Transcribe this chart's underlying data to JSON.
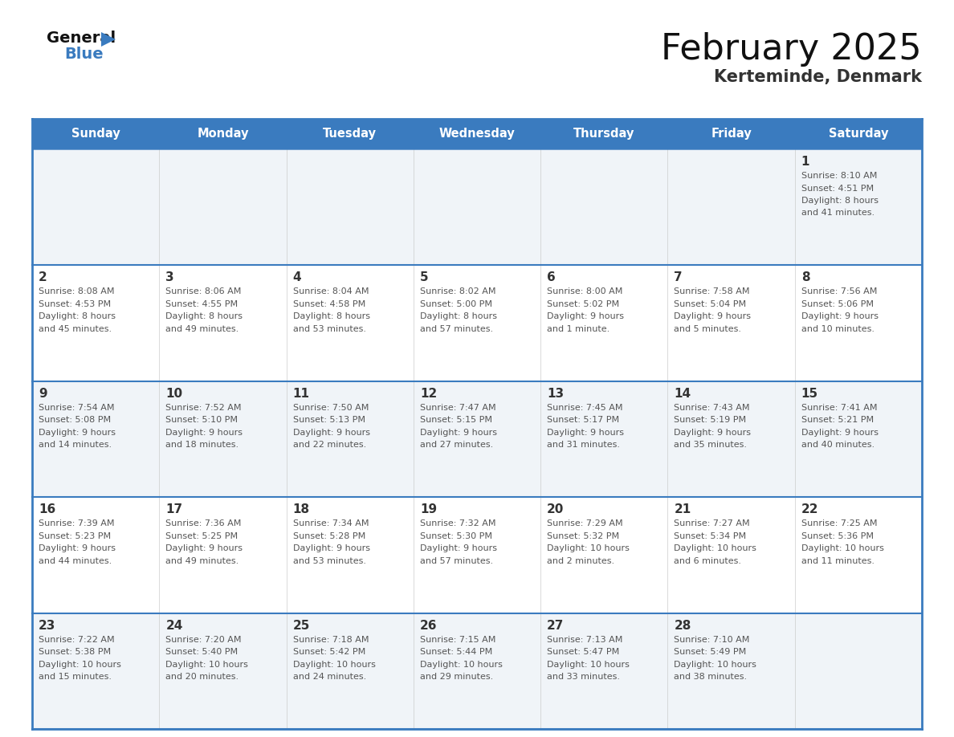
{
  "title": "February 2025",
  "subtitle": "Kerteminde, Denmark",
  "header_bg": "#3a7bbf",
  "header_text": "#ffffff",
  "day_names": [
    "Sunday",
    "Monday",
    "Tuesday",
    "Wednesday",
    "Thursday",
    "Friday",
    "Saturday"
  ],
  "border_color": "#3a7bbf",
  "row_divider_color": "#3a7bbf",
  "cell_bg_light": "#f0f4f8",
  "cell_bg_white": "#ffffff",
  "number_color": "#333333",
  "text_color": "#555555",
  "days": [
    {
      "day": 1,
      "col": 6,
      "row": 0,
      "sunrise": "8:10 AM",
      "sunset": "4:51 PM",
      "daylight": "8 hours\nand 41 minutes."
    },
    {
      "day": 2,
      "col": 0,
      "row": 1,
      "sunrise": "8:08 AM",
      "sunset": "4:53 PM",
      "daylight": "8 hours\nand 45 minutes."
    },
    {
      "day": 3,
      "col": 1,
      "row": 1,
      "sunrise": "8:06 AM",
      "sunset": "4:55 PM",
      "daylight": "8 hours\nand 49 minutes."
    },
    {
      "day": 4,
      "col": 2,
      "row": 1,
      "sunrise": "8:04 AM",
      "sunset": "4:58 PM",
      "daylight": "8 hours\nand 53 minutes."
    },
    {
      "day": 5,
      "col": 3,
      "row": 1,
      "sunrise": "8:02 AM",
      "sunset": "5:00 PM",
      "daylight": "8 hours\nand 57 minutes."
    },
    {
      "day": 6,
      "col": 4,
      "row": 1,
      "sunrise": "8:00 AM",
      "sunset": "5:02 PM",
      "daylight": "9 hours\nand 1 minute."
    },
    {
      "day": 7,
      "col": 5,
      "row": 1,
      "sunrise": "7:58 AM",
      "sunset": "5:04 PM",
      "daylight": "9 hours\nand 5 minutes."
    },
    {
      "day": 8,
      "col": 6,
      "row": 1,
      "sunrise": "7:56 AM",
      "sunset": "5:06 PM",
      "daylight": "9 hours\nand 10 minutes."
    },
    {
      "day": 9,
      "col": 0,
      "row": 2,
      "sunrise": "7:54 AM",
      "sunset": "5:08 PM",
      "daylight": "9 hours\nand 14 minutes."
    },
    {
      "day": 10,
      "col": 1,
      "row": 2,
      "sunrise": "7:52 AM",
      "sunset": "5:10 PM",
      "daylight": "9 hours\nand 18 minutes."
    },
    {
      "day": 11,
      "col": 2,
      "row": 2,
      "sunrise": "7:50 AM",
      "sunset": "5:13 PM",
      "daylight": "9 hours\nand 22 minutes."
    },
    {
      "day": 12,
      "col": 3,
      "row": 2,
      "sunrise": "7:47 AM",
      "sunset": "5:15 PM",
      "daylight": "9 hours\nand 27 minutes."
    },
    {
      "day": 13,
      "col": 4,
      "row": 2,
      "sunrise": "7:45 AM",
      "sunset": "5:17 PM",
      "daylight": "9 hours\nand 31 minutes."
    },
    {
      "day": 14,
      "col": 5,
      "row": 2,
      "sunrise": "7:43 AM",
      "sunset": "5:19 PM",
      "daylight": "9 hours\nand 35 minutes."
    },
    {
      "day": 15,
      "col": 6,
      "row": 2,
      "sunrise": "7:41 AM",
      "sunset": "5:21 PM",
      "daylight": "9 hours\nand 40 minutes."
    },
    {
      "day": 16,
      "col": 0,
      "row": 3,
      "sunrise": "7:39 AM",
      "sunset": "5:23 PM",
      "daylight": "9 hours\nand 44 minutes."
    },
    {
      "day": 17,
      "col": 1,
      "row": 3,
      "sunrise": "7:36 AM",
      "sunset": "5:25 PM",
      "daylight": "9 hours\nand 49 minutes."
    },
    {
      "day": 18,
      "col": 2,
      "row": 3,
      "sunrise": "7:34 AM",
      "sunset": "5:28 PM",
      "daylight": "9 hours\nand 53 minutes."
    },
    {
      "day": 19,
      "col": 3,
      "row": 3,
      "sunrise": "7:32 AM",
      "sunset": "5:30 PM",
      "daylight": "9 hours\nand 57 minutes."
    },
    {
      "day": 20,
      "col": 4,
      "row": 3,
      "sunrise": "7:29 AM",
      "sunset": "5:32 PM",
      "daylight": "10 hours\nand 2 minutes."
    },
    {
      "day": 21,
      "col": 5,
      "row": 3,
      "sunrise": "7:27 AM",
      "sunset": "5:34 PM",
      "daylight": "10 hours\nand 6 minutes."
    },
    {
      "day": 22,
      "col": 6,
      "row": 3,
      "sunrise": "7:25 AM",
      "sunset": "5:36 PM",
      "daylight": "10 hours\nand 11 minutes."
    },
    {
      "day": 23,
      "col": 0,
      "row": 4,
      "sunrise": "7:22 AM",
      "sunset": "5:38 PM",
      "daylight": "10 hours\nand 15 minutes."
    },
    {
      "day": 24,
      "col": 1,
      "row": 4,
      "sunrise": "7:20 AM",
      "sunset": "5:40 PM",
      "daylight": "10 hours\nand 20 minutes."
    },
    {
      "day": 25,
      "col": 2,
      "row": 4,
      "sunrise": "7:18 AM",
      "sunset": "5:42 PM",
      "daylight": "10 hours\nand 24 minutes."
    },
    {
      "day": 26,
      "col": 3,
      "row": 4,
      "sunrise": "7:15 AM",
      "sunset": "5:44 PM",
      "daylight": "10 hours\nand 29 minutes."
    },
    {
      "day": 27,
      "col": 4,
      "row": 4,
      "sunrise": "7:13 AM",
      "sunset": "5:47 PM",
      "daylight": "10 hours\nand 33 minutes."
    },
    {
      "day": 28,
      "col": 5,
      "row": 4,
      "sunrise": "7:10 AM",
      "sunset": "5:49 PM",
      "daylight": "10 hours\nand 38 minutes."
    }
  ]
}
